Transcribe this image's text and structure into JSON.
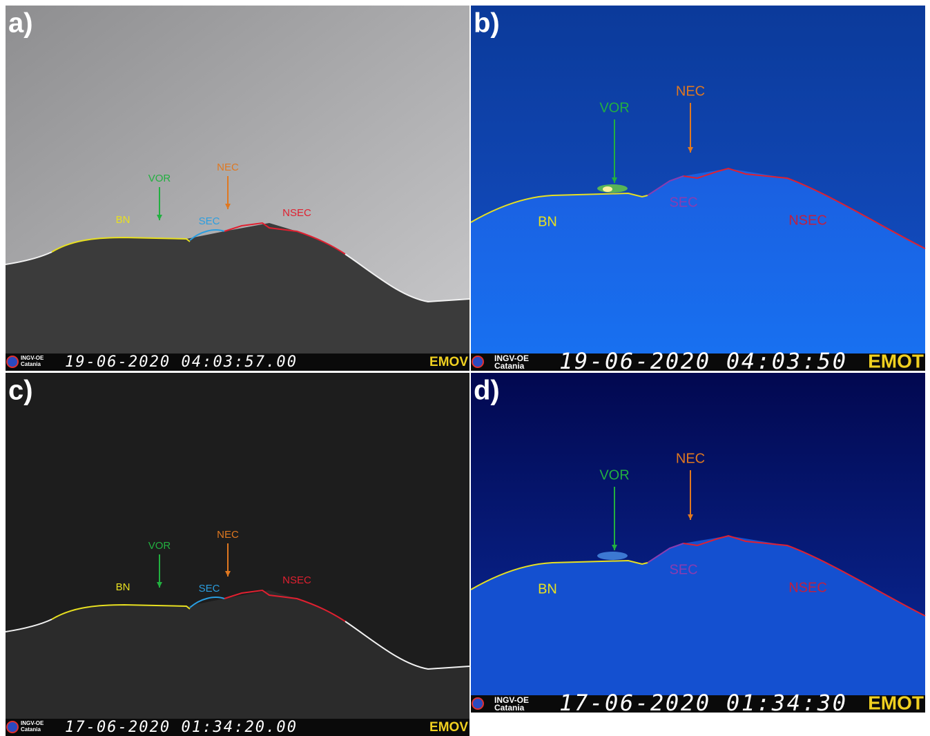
{
  "panels": [
    {
      "label": "a)",
      "craters": {
        "VOR": "VOR",
        "NEC": "NEC",
        "SEC": "SEC",
        "NSEC": "NSEC",
        "BN": "BN"
      },
      "footer": {
        "logo": "INGV-OE",
        "logo_sub": "Catania",
        "timestamp": "19-06-2020  04:03:57.00",
        "camera": "EMOV"
      }
    },
    {
      "label": "b)",
      "craters": {
        "VOR": "VOR",
        "NEC": "NEC",
        "SEC": "SEC",
        "NSEC": "NSEC",
        "BN": "BN"
      },
      "footer": {
        "logo": "INGV-OE",
        "logo_sub": "Catania",
        "timestamp": "19-06-2020 04:03:50",
        "camera": "EMOT"
      }
    },
    {
      "label": "c)",
      "craters": {
        "VOR": "VOR",
        "NEC": "NEC",
        "SEC": "SEC",
        "NSEC": "NSEC",
        "BN": "BN"
      },
      "footer": {
        "logo": "INGV-OE",
        "logo_sub": "Catania",
        "timestamp": "17-06-2020  01:34:20.00",
        "camera": "EMOV"
      }
    },
    {
      "label": "d)",
      "craters": {
        "VOR": "VOR",
        "NEC": "NEC",
        "SEC": "SEC",
        "NSEC": "NSEC",
        "BN": "BN"
      },
      "footer": {
        "logo": "INGV-OE",
        "logo_sub": "Catania",
        "timestamp": "17-06-2020 01:34:30",
        "camera": "EMOT"
      }
    }
  ]
}
